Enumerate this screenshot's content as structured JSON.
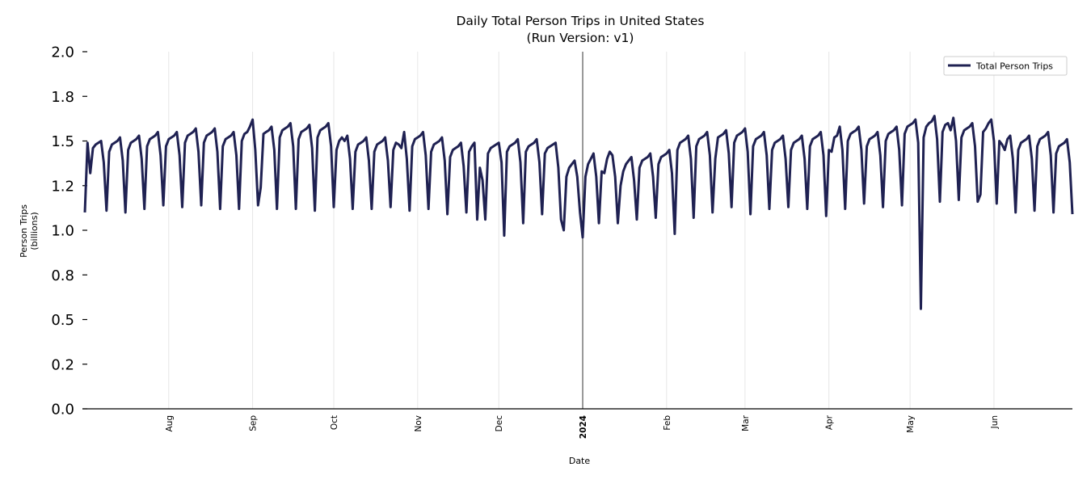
{
  "chart_data": {
    "type": "line",
    "title": "Daily Total Person Trips in United States",
    "subtitle": "(Run Version: v1)",
    "xlabel": "Date",
    "ylabel": [
      "Person Trips",
      "(billions)"
    ],
    "x_range": [
      "2023-07-01",
      "2024-06-30"
    ],
    "ylim": [
      0,
      2.0
    ],
    "yticks": [
      0,
      0.25,
      0.5,
      0.75,
      1.0,
      1.25,
      1.5,
      1.75,
      2.0
    ],
    "ytick_labels": [
      "0.0",
      "0.2",
      "0.5",
      "0.8",
      "1.0",
      "1.2",
      "1.5",
      "1.8",
      "2.0"
    ],
    "xticks": [
      {
        "date": "2023-08-01",
        "label": "Aug",
        "bold": false
      },
      {
        "date": "2023-09-01",
        "label": "Sep",
        "bold": false
      },
      {
        "date": "2023-10-01",
        "label": "Oct",
        "bold": false
      },
      {
        "date": "2023-11-01",
        "label": "Nov",
        "bold": false
      },
      {
        "date": "2023-12-01",
        "label": "Dec",
        "bold": false
      },
      {
        "date": "2024-01-01",
        "label": "2024",
        "bold": true
      },
      {
        "date": "2024-02-01",
        "label": "Feb",
        "bold": false
      },
      {
        "date": "2024-03-01",
        "label": "Mar",
        "bold": false
      },
      {
        "date": "2024-04-01",
        "label": "Apr",
        "bold": false
      },
      {
        "date": "2024-05-01",
        "label": "May",
        "bold": false
      },
      {
        "date": "2024-06-01",
        "label": "Jun",
        "bold": false
      }
    ],
    "year_marker": "2024-01-01",
    "grid": "vertical",
    "legend_position": "top-right",
    "series": [
      {
        "name": "Total Person Trips",
        "color": "#1f2152",
        "start_date": "2023-07-01",
        "frequency": "daily",
        "values": [
          1.1,
          1.49,
          1.32,
          1.46,
          1.48,
          1.49,
          1.5,
          1.38,
          1.11,
          1.44,
          1.48,
          1.49,
          1.5,
          1.52,
          1.39,
          1.1,
          1.45,
          1.49,
          1.5,
          1.51,
          1.53,
          1.4,
          1.12,
          1.47,
          1.51,
          1.52,
          1.53,
          1.55,
          1.42,
          1.14,
          1.47,
          1.51,
          1.52,
          1.53,
          1.55,
          1.42,
          1.13,
          1.49,
          1.53,
          1.54,
          1.55,
          1.57,
          1.44,
          1.14,
          1.49,
          1.53,
          1.54,
          1.55,
          1.57,
          1.44,
          1.12,
          1.47,
          1.51,
          1.52,
          1.53,
          1.55,
          1.42,
          1.12,
          1.5,
          1.54,
          1.55,
          1.58,
          1.62,
          1.45,
          1.14,
          1.24,
          1.54,
          1.55,
          1.56,
          1.58,
          1.45,
          1.12,
          1.52,
          1.56,
          1.57,
          1.58,
          1.6,
          1.47,
          1.12,
          1.51,
          1.55,
          1.56,
          1.57,
          1.59,
          1.46,
          1.11,
          1.52,
          1.56,
          1.57,
          1.58,
          1.6,
          1.47,
          1.13,
          1.45,
          1.5,
          1.52,
          1.5,
          1.53,
          1.4,
          1.12,
          1.44,
          1.48,
          1.49,
          1.5,
          1.52,
          1.39,
          1.12,
          1.44,
          1.48,
          1.49,
          1.5,
          1.52,
          1.39,
          1.13,
          1.45,
          1.49,
          1.48,
          1.46,
          1.55,
          1.4,
          1.11,
          1.47,
          1.51,
          1.52,
          1.53,
          1.55,
          1.42,
          1.12,
          1.44,
          1.48,
          1.49,
          1.5,
          1.52,
          1.39,
          1.09,
          1.41,
          1.45,
          1.46,
          1.47,
          1.49,
          1.36,
          1.1,
          1.44,
          1.47,
          1.49,
          1.06,
          1.35,
          1.28,
          1.06,
          1.43,
          1.46,
          1.47,
          1.48,
          1.49,
          1.38,
          0.97,
          1.44,
          1.47,
          1.48,
          1.49,
          1.51,
          1.38,
          1.04,
          1.44,
          1.47,
          1.48,
          1.49,
          1.51,
          1.38,
          1.09,
          1.43,
          1.46,
          1.47,
          1.48,
          1.49,
          1.35,
          1.06,
          1.0,
          1.3,
          1.35,
          1.37,
          1.39,
          1.3,
          1.1,
          0.96,
          1.3,
          1.37,
          1.4,
          1.43,
          1.3,
          1.04,
          1.33,
          1.32,
          1.4,
          1.44,
          1.42,
          1.3,
          1.04,
          1.25,
          1.33,
          1.37,
          1.39,
          1.41,
          1.28,
          1.06,
          1.35,
          1.39,
          1.4,
          1.41,
          1.43,
          1.3,
          1.07,
          1.37,
          1.41,
          1.42,
          1.43,
          1.45,
          1.32,
          0.98,
          1.45,
          1.49,
          1.5,
          1.51,
          1.53,
          1.4,
          1.07,
          1.47,
          1.51,
          1.52,
          1.53,
          1.55,
          1.42,
          1.1,
          1.4,
          1.52,
          1.53,
          1.54,
          1.56,
          1.43,
          1.13,
          1.49,
          1.53,
          1.54,
          1.55,
          1.57,
          1.44,
          1.09,
          1.47,
          1.51,
          1.52,
          1.53,
          1.55,
          1.42,
          1.12,
          1.45,
          1.49,
          1.5,
          1.51,
          1.53,
          1.4,
          1.13,
          1.45,
          1.49,
          1.5,
          1.51,
          1.53,
          1.4,
          1.12,
          1.47,
          1.51,
          1.52,
          1.53,
          1.55,
          1.42,
          1.08,
          1.45,
          1.44,
          1.52,
          1.53,
          1.58,
          1.45,
          1.12,
          1.5,
          1.54,
          1.55,
          1.56,
          1.58,
          1.45,
          1.15,
          1.47,
          1.51,
          1.52,
          1.53,
          1.55,
          1.42,
          1.13,
          1.5,
          1.54,
          1.55,
          1.56,
          1.58,
          1.45,
          1.14,
          1.54,
          1.58,
          1.59,
          1.6,
          1.62,
          1.49,
          0.56,
          1.52,
          1.58,
          1.6,
          1.61,
          1.64,
          1.51,
          1.16,
          1.55,
          1.59,
          1.6,
          1.56,
          1.63,
          1.5,
          1.17,
          1.52,
          1.56,
          1.57,
          1.58,
          1.6,
          1.47,
          1.16,
          1.2,
          1.55,
          1.57,
          1.6,
          1.62,
          1.5,
          1.15,
          1.5,
          1.48,
          1.45,
          1.51,
          1.53,
          1.4,
          1.1,
          1.45,
          1.49,
          1.5,
          1.51,
          1.53,
          1.4,
          1.11,
          1.47,
          1.51,
          1.52,
          1.53,
          1.55,
          1.42,
          1.1,
          1.43,
          1.47,
          1.48,
          1.49,
          1.51,
          1.38,
          1.09
        ]
      }
    ]
  }
}
